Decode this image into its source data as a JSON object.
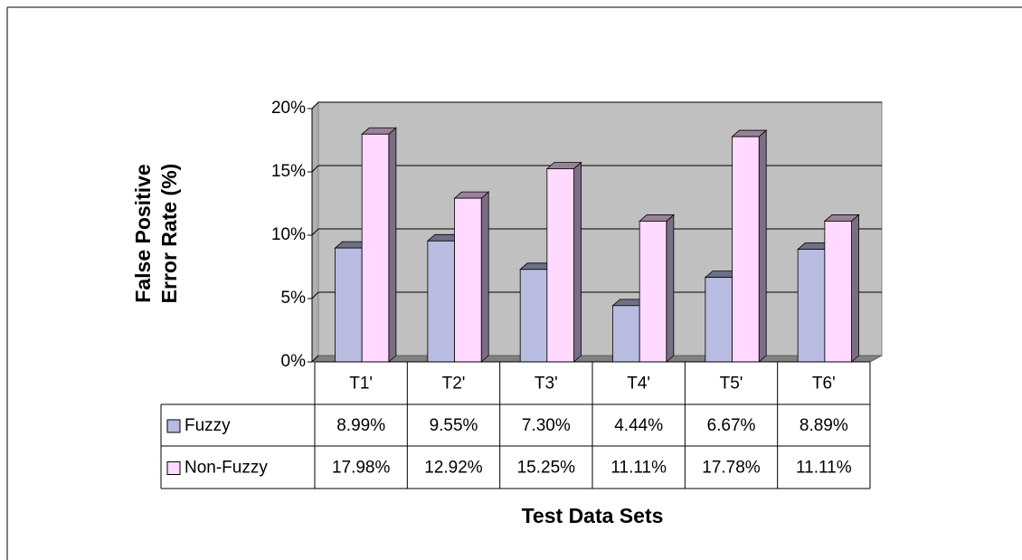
{
  "chart_data": {
    "type": "bar3d",
    "ylabel": [
      "False Positive",
      "Error Rate (%)"
    ],
    "xlabel": "Test Data Sets",
    "categories": [
      "T1'",
      "T2'",
      "T3'",
      "T4'",
      "T5'",
      "T6'"
    ],
    "series": [
      {
        "name": "Fuzzy",
        "color": "#b8bce0",
        "values": [
          8.99,
          9.55,
          7.3,
          4.44,
          6.67,
          8.89
        ],
        "value_labels": [
          "8.99%",
          "9.55%",
          "7.30%",
          "4.44%",
          "6.67%",
          "8.89%"
        ]
      },
      {
        "name": "Non-Fuzzy",
        "color": "#ffd9ff",
        "values": [
          17.98,
          12.92,
          15.25,
          11.11,
          17.78,
          11.11
        ],
        "value_labels": [
          "17.98%",
          "12.92%",
          "15.25%",
          "11.11%",
          "17.78%",
          "11.11%"
        ]
      }
    ],
    "ylim": [
      0,
      20
    ],
    "yticks": [
      {
        "value": 0,
        "label": "0%"
      },
      {
        "value": 5,
        "label": "5%"
      },
      {
        "value": 10,
        "label": "10%"
      },
      {
        "value": 15,
        "label": "15%"
      },
      {
        "value": 20,
        "label": "20%"
      }
    ],
    "grid": true
  }
}
